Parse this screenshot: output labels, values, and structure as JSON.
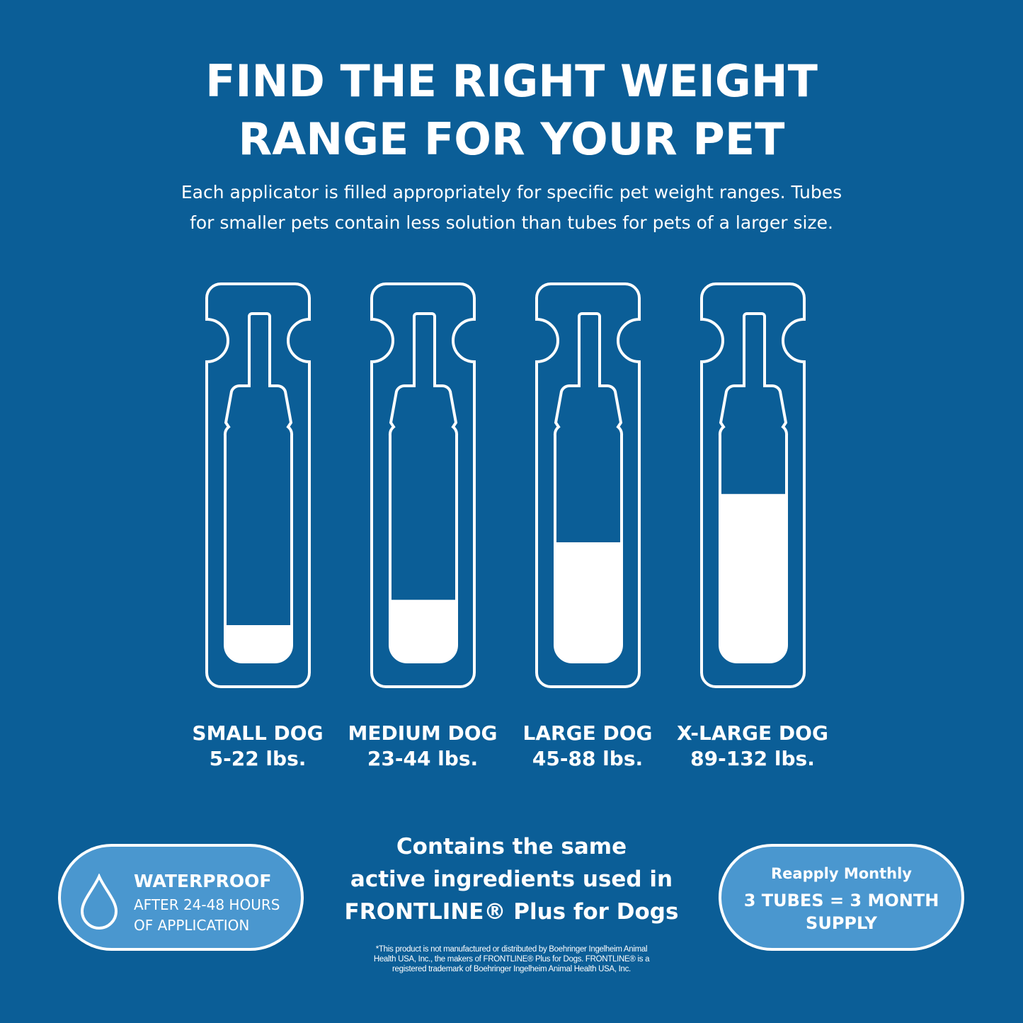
{
  "colors": {
    "background": "#0b5e97",
    "pill": "#4a97cf",
    "line": "#ffffff"
  },
  "title": [
    "FIND THE RIGHT WEIGHT",
    "RANGE FOR YOUR PET"
  ],
  "subtitle": [
    "Each applicator is filled appropriately for specific pet weight ranges. Tubes",
    "for smaller pets contain less solution than tubes for pets of a larger size."
  ],
  "tubes": [
    {
      "name": "SMALL DOG",
      "range": "5-22 lbs.",
      "fill_level": 0.16
    },
    {
      "name": "MEDIUM DOG",
      "range": "23-44 lbs.",
      "fill_level": 0.27
    },
    {
      "name": "LARGE DOG",
      "range": "45-88 lbs.",
      "fill_level": 0.52
    },
    {
      "name": "X-LARGE DOG",
      "range": "89-132 lbs.",
      "fill_level": 0.73
    }
  ],
  "waterproof": {
    "icon": "water-drop-icon",
    "title": "WATERPROOF",
    "line1": "AFTER 24-48 HOURS",
    "line2": "OF APPLICATION"
  },
  "ingredients": [
    "Contains the same",
    "active ingredients used in",
    "FRONTLINE® Plus for Dogs"
  ],
  "reapply": {
    "title": "Reapply Monthly",
    "line1": "3 TUBES = 3 MONTH",
    "line2": "SUPPLY"
  },
  "disclaimer": [
    "*This product is not manufactured or distributed by Boehringer Ingelheim Animal",
    "Health USA, Inc., the makers of FRONTLINE® Plus for Dogs. FRONTLINE® is a",
    "registered trademark of Boehringer Ingelheim Animal Health USA, Inc."
  ]
}
